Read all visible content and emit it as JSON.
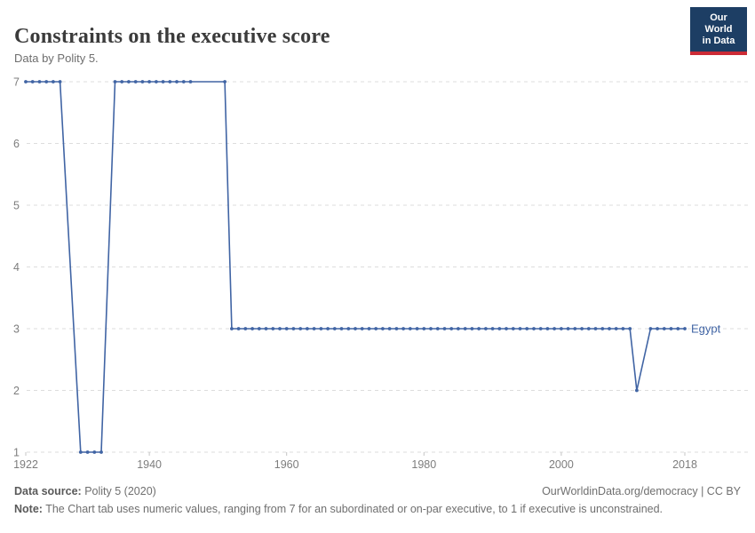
{
  "header": {
    "title": "Constraints on the executive score",
    "subtitle": "Data by Polity 5.",
    "logo_line1": "Our World",
    "logo_line2": "in Data"
  },
  "footer": {
    "source_label": "Data source:",
    "source_value": " Polity 5 (2020)",
    "link_text": "OurWorldinData.org/democracy | CC BY",
    "note_label": "Note:",
    "note_value": " The Chart tab uses numeric values, ranging from 7 for an subordinated or on-par executive, to 1 if executive is unconstrained."
  },
  "colors": {
    "series_blue": "#4064A4",
    "grid_gray": "#dddddd",
    "tick_gray": "#c4c4c4",
    "logo_navy": "#1d3e64",
    "logo_red": "#cc2b36"
  },
  "chart_data": {
    "type": "line",
    "title": "Constraints on the executive score",
    "subtitle": "Data by Polity 5.",
    "xlabel": "",
    "ylabel": "",
    "xlim": [
      1922,
      2018
    ],
    "ylim": [
      1,
      7
    ],
    "x_ticks": [
      1922,
      1940,
      1960,
      1980,
      2000,
      2018
    ],
    "y_ticks": [
      1,
      2,
      3,
      4,
      5,
      6,
      7
    ],
    "grid": "horizontal-dashed",
    "legend_position": "end-of-line-label",
    "series": [
      {
        "name": "Egypt",
        "color": "#4064A4",
        "points": [
          [
            1922,
            7
          ],
          [
            1923,
            7
          ],
          [
            1924,
            7
          ],
          [
            1925,
            7
          ],
          [
            1926,
            7
          ],
          [
            1927,
            7
          ],
          [
            1930,
            1
          ],
          [
            1931,
            1
          ],
          [
            1932,
            1
          ],
          [
            1933,
            1
          ],
          [
            1935,
            7
          ],
          [
            1936,
            7
          ],
          [
            1937,
            7
          ],
          [
            1938,
            7
          ],
          [
            1939,
            7
          ],
          [
            1940,
            7
          ],
          [
            1941,
            7
          ],
          [
            1942,
            7
          ],
          [
            1943,
            7
          ],
          [
            1944,
            7
          ],
          [
            1945,
            7
          ],
          [
            1946,
            7
          ],
          [
            1951,
            7
          ],
          [
            1952,
            3
          ],
          [
            1953,
            3
          ],
          [
            1954,
            3
          ],
          [
            1955,
            3
          ],
          [
            1956,
            3
          ],
          [
            1957,
            3
          ],
          [
            1958,
            3
          ],
          [
            1959,
            3
          ],
          [
            1960,
            3
          ],
          [
            1961,
            3
          ],
          [
            1962,
            3
          ],
          [
            1963,
            3
          ],
          [
            1964,
            3
          ],
          [
            1965,
            3
          ],
          [
            1966,
            3
          ],
          [
            1967,
            3
          ],
          [
            1968,
            3
          ],
          [
            1969,
            3
          ],
          [
            1970,
            3
          ],
          [
            1971,
            3
          ],
          [
            1972,
            3
          ],
          [
            1973,
            3
          ],
          [
            1974,
            3
          ],
          [
            1975,
            3
          ],
          [
            1976,
            3
          ],
          [
            1977,
            3
          ],
          [
            1978,
            3
          ],
          [
            1979,
            3
          ],
          [
            1980,
            3
          ],
          [
            1981,
            3
          ],
          [
            1982,
            3
          ],
          [
            1983,
            3
          ],
          [
            1984,
            3
          ],
          [
            1985,
            3
          ],
          [
            1986,
            3
          ],
          [
            1987,
            3
          ],
          [
            1988,
            3
          ],
          [
            1989,
            3
          ],
          [
            1990,
            3
          ],
          [
            1991,
            3
          ],
          [
            1992,
            3
          ],
          [
            1993,
            3
          ],
          [
            1994,
            3
          ],
          [
            1995,
            3
          ],
          [
            1996,
            3
          ],
          [
            1997,
            3
          ],
          [
            1998,
            3
          ],
          [
            1999,
            3
          ],
          [
            2000,
            3
          ],
          [
            2001,
            3
          ],
          [
            2002,
            3
          ],
          [
            2003,
            3
          ],
          [
            2004,
            3
          ],
          [
            2005,
            3
          ],
          [
            2006,
            3
          ],
          [
            2007,
            3
          ],
          [
            2008,
            3
          ],
          [
            2009,
            3
          ],
          [
            2010,
            3
          ],
          [
            2011,
            2
          ],
          [
            2013,
            3
          ],
          [
            2014,
            3
          ],
          [
            2015,
            3
          ],
          [
            2016,
            3
          ],
          [
            2017,
            3
          ],
          [
            2018,
            3
          ]
        ]
      }
    ]
  }
}
